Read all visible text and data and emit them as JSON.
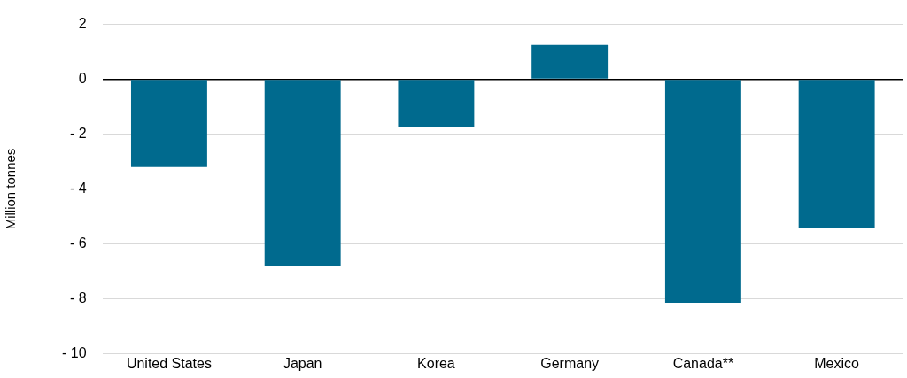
{
  "chart_data": {
    "type": "bar",
    "ylabel": "Million tonnes",
    "categories": [
      "United States",
      "Japan",
      "Korea",
      "Germany",
      "Canada**",
      "Mexico"
    ],
    "values": [
      -3.2,
      -6.8,
      -1.75,
      1.25,
      -8.15,
      -5.4
    ],
    "color": "#006a8e",
    "ylim": [
      -10,
      2
    ],
    "yticks": [
      2,
      0,
      {
        "value": -2,
        "label": "- 2"
      },
      {
        "value": -4,
        "label": "- 4"
      },
      {
        "value": -6,
        "label": "- 6"
      },
      {
        "value": -8,
        "label": "- 8"
      },
      {
        "value": -10,
        "label": "- 10"
      }
    ],
    "grid": "y",
    "legend": false
  }
}
